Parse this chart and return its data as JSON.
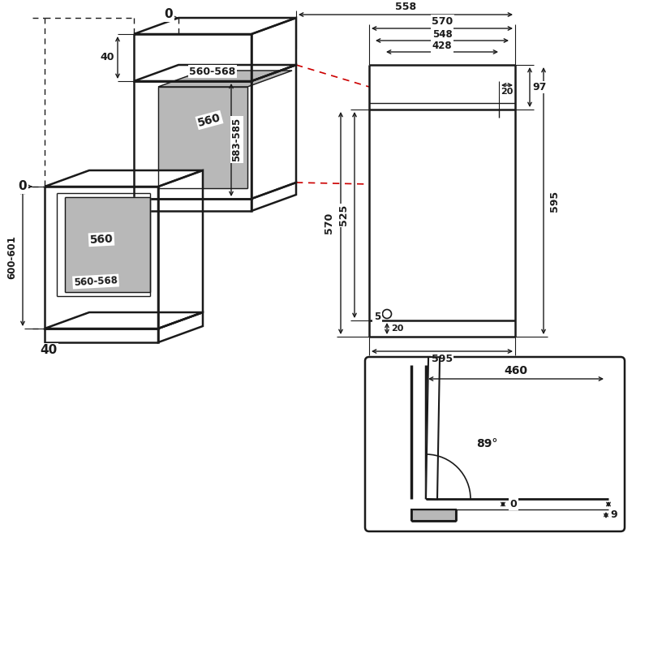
{
  "bg_color": "#ffffff",
  "line_color": "#1a1a1a",
  "gray_fill": "#b8b8b8",
  "red_dashed": "#cc0000",
  "lw_main": 1.8,
  "lw_thin": 1.0,
  "lw_dim": 1.0
}
